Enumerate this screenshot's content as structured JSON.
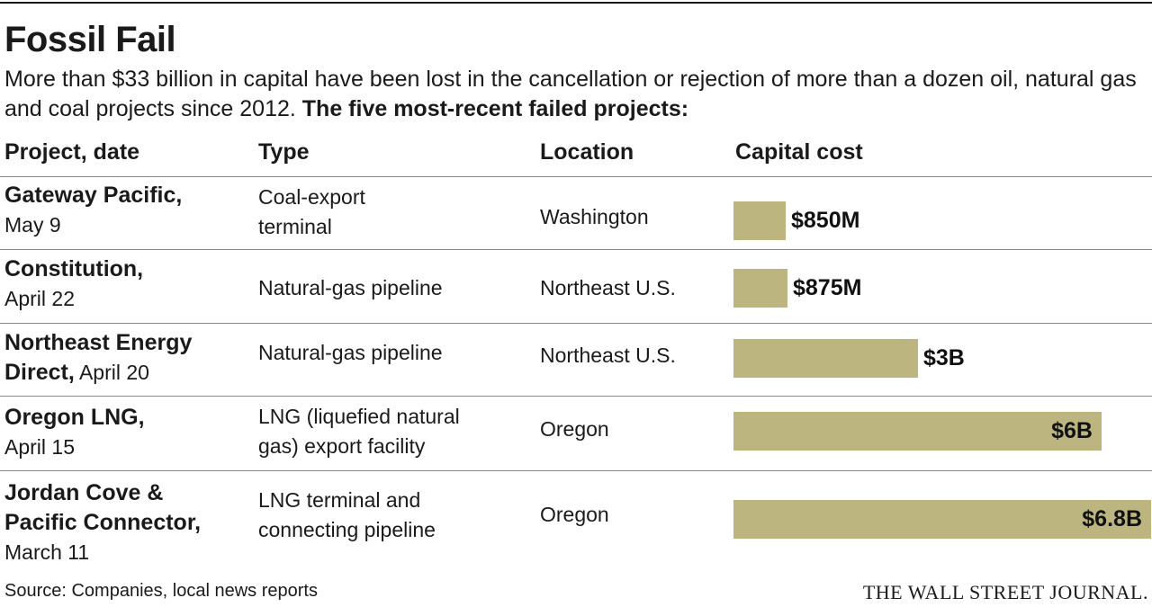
{
  "header": {
    "title": "Fossil Fail",
    "intro": "More than $33 billion in capital have been lost in the cancellation or rejection of more than a dozen oil, natural gas and coal projects since 2012.",
    "intro_bold": "The five most-recent failed projects:"
  },
  "columns": [
    "Project, date",
    "Type",
    "Location",
    "Capital cost"
  ],
  "rows": [
    {
      "project": "Gateway Pacific,",
      "date": "May 9",
      "type_lines": [
        "Coal-export",
        "terminal"
      ],
      "location": "Washington",
      "cost_label": "$850M"
    },
    {
      "project": "Constitution,",
      "date": "April 22",
      "type_lines": [
        "Natural-gas pipeline"
      ],
      "location": "Northeast U.S.",
      "cost_label": "$875M"
    },
    {
      "project": "Northeast Energy",
      "project_2": "Direct,",
      "date": "April 20",
      "type_lines": [
        "Natural-gas pipeline"
      ],
      "location": "Northeast U.S.",
      "cost_label": "$3B"
    },
    {
      "project": "Oregon LNG,",
      "date": "April 15",
      "type_lines": [
        "LNG (liquefied natural",
        "gas) export facility"
      ],
      "location": "Oregon",
      "cost_label": "$6B"
    },
    {
      "project": "Jordan Cove &",
      "project_2": "Pacific Connector,",
      "date": "March 11",
      "type_lines": [
        "LNG terminal and",
        "connecting pipeline"
      ],
      "location": "Oregon",
      "cost_label": "$6.8B"
    }
  ],
  "chart_data": {
    "type": "bar",
    "orientation": "horizontal",
    "categories": [
      "Gateway Pacific",
      "Constitution",
      "Northeast Energy Direct",
      "Oregon LNG",
      "Jordan Cove & Pacific Connector"
    ],
    "values": [
      0.85,
      0.875,
      3,
      6,
      6.8
    ],
    "unit": "$ billions",
    "labels": [
      "$850M",
      "$875M",
      "$3B",
      "$6B",
      "$6.8B"
    ],
    "color": "#bdb580",
    "xlim": [
      0,
      6.8
    ]
  },
  "footer": {
    "source": "Source: Companies, local news reports",
    "logo": "THE WALL STREET JOURNAL."
  }
}
